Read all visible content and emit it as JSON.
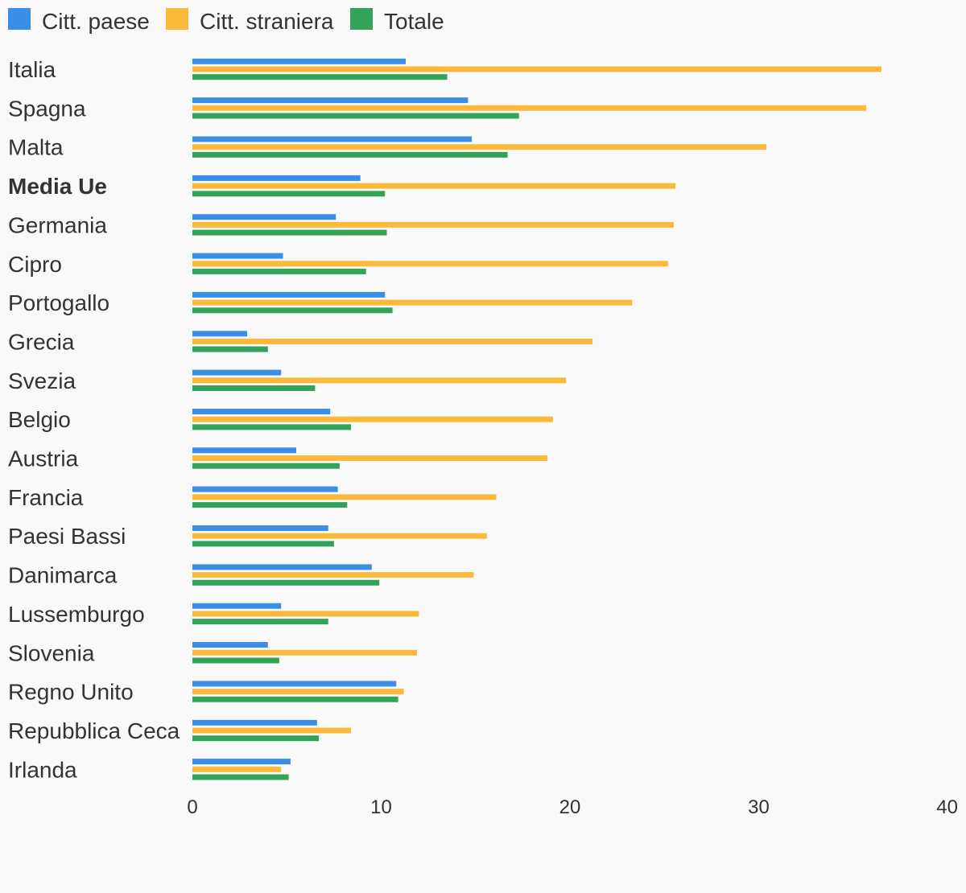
{
  "chart_data": {
    "type": "bar",
    "orientation": "horizontal",
    "categories": [
      "Italia",
      "Spagna",
      "Malta",
      "Media Ue",
      "Germania",
      "Cipro",
      "Portogallo",
      "Grecia",
      "Svezia",
      "Belgio",
      "Austria",
      "Francia",
      "Paesi Bassi",
      "Danimarca",
      "Lussemburgo",
      "Slovenia",
      "Regno Unito",
      "Repubblica Ceca",
      "Irlanda"
    ],
    "highlight_category": "Media Ue",
    "series": [
      {
        "name": "Citt. paese",
        "color": "#3a8ee8",
        "values": [
          11.3,
          14.6,
          14.8,
          8.9,
          7.6,
          4.8,
          10.2,
          2.9,
          4.7,
          7.3,
          5.5,
          7.7,
          7.2,
          9.5,
          4.7,
          4.0,
          10.8,
          6.6,
          5.2
        ]
      },
      {
        "name": "Citt. straniera",
        "color": "#fbb93a",
        "values": [
          36.5,
          35.7,
          30.4,
          25.6,
          25.5,
          25.2,
          23.3,
          21.2,
          19.8,
          19.1,
          18.8,
          16.1,
          15.6,
          14.9,
          12.0,
          11.9,
          11.2,
          8.4,
          4.7
        ]
      },
      {
        "name": "Totale",
        "color": "#34a35a",
        "values": [
          13.5,
          17.3,
          16.7,
          10.2,
          10.3,
          9.2,
          10.6,
          4.0,
          6.5,
          8.4,
          7.8,
          8.2,
          7.5,
          9.9,
          7.2,
          4.6,
          10.9,
          6.7,
          5.1
        ]
      }
    ],
    "xlim": [
      0,
      40
    ],
    "xticks": [
      "0",
      "10",
      "20",
      "30",
      "40"
    ],
    "legend_position": "top-left",
    "grid": false,
    "title": "",
    "xlabel": "",
    "ylabel": ""
  }
}
